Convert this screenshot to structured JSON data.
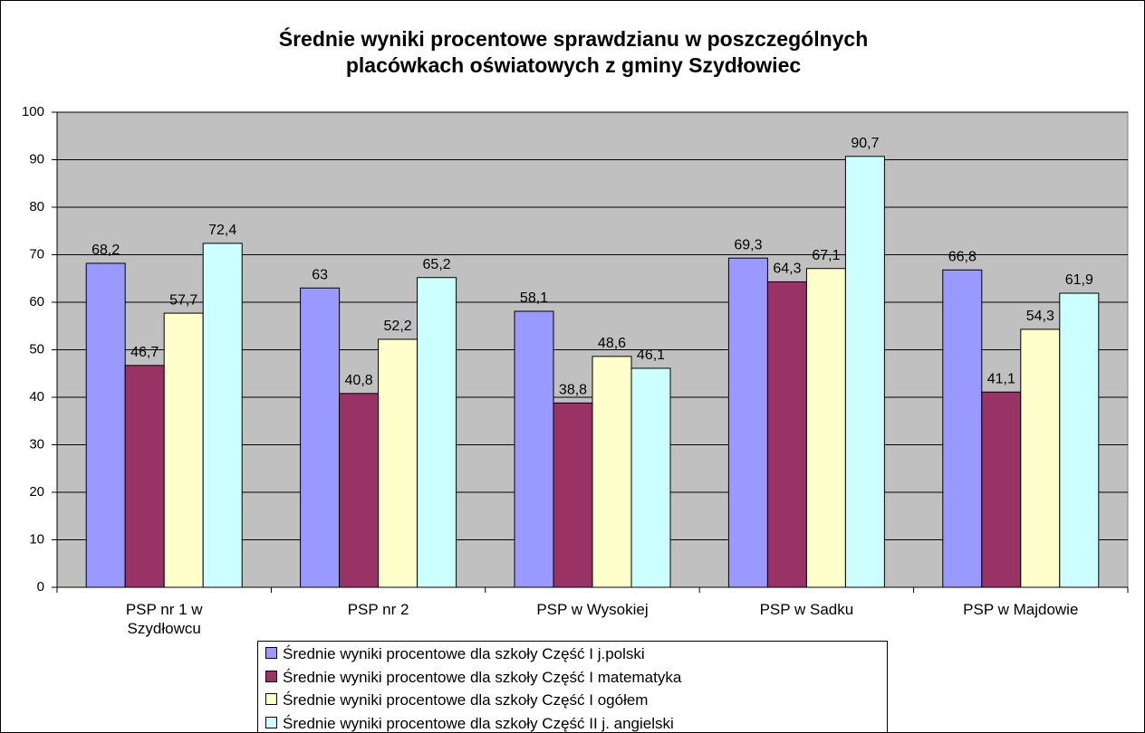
{
  "chart_data": {
    "type": "bar",
    "title": "Średnie wyniki procentowe sprawdzianu w poszczególnych placówkach oświatowych z gminy Szydłowiec",
    "categories": [
      "PSP nr 1 w Szydłowcu",
      "PSP nr 2",
      "PSP w Wysokiej",
      "PSP w Sadku",
      "PSP w Majdowie"
    ],
    "series": [
      {
        "name": "Średnie wyniki procentowe dla szkoły Część I j.polski",
        "color": "#9999ff",
        "values": [
          68.2,
          63,
          58.1,
          69.3,
          66.8
        ],
        "value_labels": [
          "68,2",
          "63",
          "58,1",
          "69,3",
          "66,8"
        ]
      },
      {
        "name": "Średnie wyniki procentowe dla szkoły Część I matematyka",
        "color": "#993366",
        "values": [
          46.7,
          40.8,
          38.8,
          64.3,
          41.1
        ],
        "value_labels": [
          "46,7",
          "40,8",
          "38,8",
          "64,3",
          "41,1"
        ]
      },
      {
        "name": "Średnie wyniki procentowe dla szkoły Część I ogółem",
        "color": "#ffffcc",
        "values": [
          57.7,
          52.2,
          48.6,
          67.1,
          54.3
        ],
        "value_labels": [
          "57,7",
          "52,2",
          "48,6",
          "67,1",
          "54,3"
        ]
      },
      {
        "name": "Średnie wyniki procentowe dla szkoły Część II j. angielski",
        "color": "#ccffff",
        "values": [
          72.4,
          65.2,
          46.1,
          90.7,
          61.9
        ],
        "value_labels": [
          "72,4",
          "65,2",
          "46,1",
          "90,7",
          "61,9"
        ]
      }
    ],
    "ylim": [
      0,
      100
    ],
    "yticks": [
      0,
      10,
      20,
      30,
      40,
      50,
      60,
      70,
      80,
      90,
      100
    ],
    "grid": true,
    "plot_background": "#c0c0c0",
    "legend": "bottom"
  }
}
